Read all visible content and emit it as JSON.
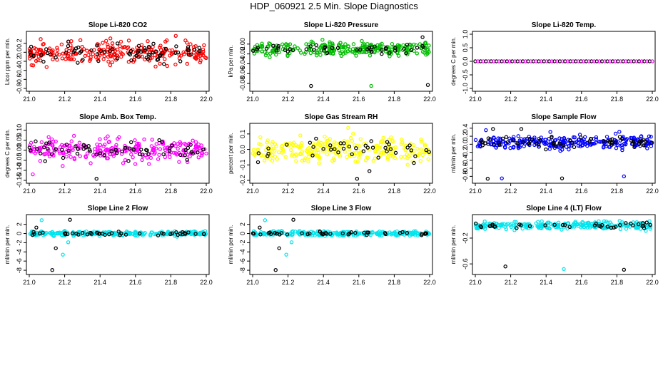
{
  "title": "HDP_060921  2.5 Min. Slope Diagnostics",
  "colors": {
    "reference": "#000000"
  },
  "chart_data": [
    {
      "type": "scatter",
      "title": "Slope Li-820 CO2",
      "ylabel": "Licor ppm per min.",
      "xlim": [
        21.0,
        22.0
      ],
      "ylim": [
        -0.8,
        0.4
      ],
      "xticks": [
        "21.0",
        "21.2",
        "21.4",
        "21.6",
        "21.8",
        "22.0"
      ],
      "yticks": [
        "-0.8",
        "-0.6",
        "-0.4",
        "-0.2",
        "0.0",
        "0.2"
      ],
      "color": "#ff0000",
      "center": 0.0,
      "spread": 0.45,
      "n": 260,
      "ref_n": 70,
      "outliers": []
    },
    {
      "type": "scatter",
      "title": "Slope Li-820 Pressure",
      "ylabel": "kPa per min.",
      "xlim": [
        21.0,
        22.0
      ],
      "ylim": [
        -0.09,
        0.02
      ],
      "xticks": [
        "21.0",
        "21.2",
        "21.4",
        "21.6",
        "21.8",
        "22.0"
      ],
      "yticks": [
        "-0.08",
        "-0.06",
        "-0.04",
        "-0.02",
        "0.00"
      ],
      "color": "#00bb00",
      "center": -0.01,
      "spread": 0.022,
      "n": 260,
      "ref_n": 45,
      "outliers": [
        [
          21.33,
          -0.085
        ],
        [
          21.67,
          -0.085
        ],
        [
          21.99,
          -0.083
        ],
        [
          21.34,
          0.003
        ],
        [
          21.96,
          0.014
        ]
      ]
    },
    {
      "type": "scatter",
      "title": "Slope Li-820 Temp.",
      "ylabel": "degrees C per min.",
      "xlim": [
        21.0,
        22.0
      ],
      "ylim": [
        -1.0,
        1.0
      ],
      "xticks": [
        "21.0",
        "21.2",
        "21.4",
        "21.6",
        "21.8",
        "22.0"
      ],
      "yticks": [
        "-1.0",
        "-0.5",
        "0.0",
        "0.5",
        "1.0"
      ],
      "color": "#ff00ff",
      "center": 0.0,
      "spread": 0.0,
      "n": 68,
      "ref_n": 68,
      "outliers": []
    },
    {
      "type": "scatter",
      "title": "Slope Amb. Box Temp.",
      "ylabel": "degrees C per min.",
      "xlim": [
        21.0,
        22.0
      ],
      "ylim": [
        -0.15,
        0.12
      ],
      "xticks": [
        "21.0",
        "21.2",
        "21.4",
        "21.6",
        "21.8",
        "22.0"
      ],
      "yticks": [
        "-0.15",
        "-0.10",
        "-0.05",
        "0.00",
        "0.05",
        "0.10"
      ],
      "color": "#ff00ff",
      "center": 0.0,
      "spread": 0.09,
      "n": 260,
      "ref_n": 60,
      "outliers": [
        [
          21.38,
          -0.145
        ],
        [
          21.02,
          -0.12
        ]
      ]
    },
    {
      "type": "scatter",
      "title": "Slope Gas Stream RH",
      "ylabel": "percent per min.",
      "xlim": [
        21.0,
        22.0
      ],
      "ylim": [
        -0.2,
        0.15
      ],
      "xticks": [
        "21.0",
        "21.2",
        "21.4",
        "21.6",
        "21.8",
        "22.0"
      ],
      "yticks": [
        "-0.2",
        "-0.1",
        "0.0",
        "0.1"
      ],
      "color": "#ffff00",
      "center": 0.0,
      "spread": 0.14,
      "n": 260,
      "ref_n": 40,
      "outliers": [
        [
          21.59,
          -0.19
        ],
        [
          21.54,
          0.14
        ],
        [
          21.66,
          -0.14
        ]
      ]
    },
    {
      "type": "scatter",
      "title": "Slope Sample Flow",
      "ylabel": "ml/min per min.",
      "xlim": [
        21.0,
        22.0
      ],
      "ylim": [
        -0.9,
        0.45
      ],
      "xticks": [
        "21.0",
        "21.2",
        "21.4",
        "21.6",
        "21.8",
        "22.0"
      ],
      "yticks": [
        "-0.8",
        "-0.6",
        "-0.4",
        "-0.2",
        "0.0",
        "0.2",
        "0.4"
      ],
      "color": "#0000ff",
      "center": 0.05,
      "spread": 0.3,
      "n": 260,
      "ref_n": 60,
      "outliers": [
        [
          21.07,
          -0.88
        ],
        [
          21.15,
          -0.85
        ],
        [
          21.49,
          -0.85
        ],
        [
          21.84,
          -0.8
        ],
        [
          21.26,
          0.38
        ],
        [
          21.06,
          0.35
        ],
        [
          21.1,
          0.38
        ]
      ]
    },
    {
      "type": "scatter",
      "title": "Slope Line 2 Flow",
      "ylabel": "ml/min per min.",
      "xlim": [
        21.0,
        22.0
      ],
      "ylim": [
        -8.3,
        3.5
      ],
      "xticks": [
        "21.0",
        "21.2",
        "21.4",
        "21.6",
        "21.8",
        "22.0"
      ],
      "yticks": [
        "-8",
        "-6",
        "-4",
        "-2",
        "0",
        "2"
      ],
      "color": "#00e5ee",
      "center": 0.0,
      "spread": 0.8,
      "n": 260,
      "ref_n": 45,
      "outliers": [
        [
          21.13,
          -8.0
        ],
        [
          21.19,
          -4.6
        ],
        [
          21.15,
          -3.2
        ],
        [
          21.22,
          -1.9
        ],
        [
          21.23,
          3.0
        ],
        [
          21.07,
          2.9
        ],
        [
          21.04,
          1.3
        ]
      ]
    },
    {
      "type": "scatter",
      "title": "Slope Line 3 Flow",
      "ylabel": "ml/min per min.",
      "xlim": [
        21.0,
        22.0
      ],
      "ylim": [
        -8.3,
        3.5
      ],
      "xticks": [
        "21.0",
        "21.2",
        "21.4",
        "21.6",
        "21.8",
        "22.0"
      ],
      "yticks": [
        "-8",
        "-6",
        "-4",
        "-2",
        "0",
        "2"
      ],
      "color": "#00e5ee",
      "center": 0.0,
      "spread": 0.8,
      "n": 260,
      "ref_n": 45,
      "outliers": [
        [
          21.13,
          -8.0
        ],
        [
          21.19,
          -4.6
        ],
        [
          21.15,
          -3.2
        ],
        [
          21.22,
          -1.9
        ],
        [
          21.23,
          3.0
        ],
        [
          21.07,
          2.9
        ],
        [
          21.04,
          1.3
        ]
      ]
    },
    {
      "type": "scatter",
      "title": "Slope Line 4 (LT) Flow",
      "ylabel": "ml/min per min.",
      "xlim": [
        21.0,
        22.0
      ],
      "ylim": [
        -0.72,
        0.12
      ],
      "xticks": [
        "21.0",
        "21.2",
        "21.4",
        "21.6",
        "21.8",
        "22.0"
      ],
      "yticks": [
        "-0.6",
        "-0.2"
      ],
      "color": "#00e5ee",
      "center": 0.0,
      "spread": 0.1,
      "n": 260,
      "ref_n": 40,
      "outliers": [
        [
          21.17,
          -0.64
        ],
        [
          21.5,
          -0.68
        ],
        [
          21.84,
          -0.69
        ]
      ]
    }
  ]
}
